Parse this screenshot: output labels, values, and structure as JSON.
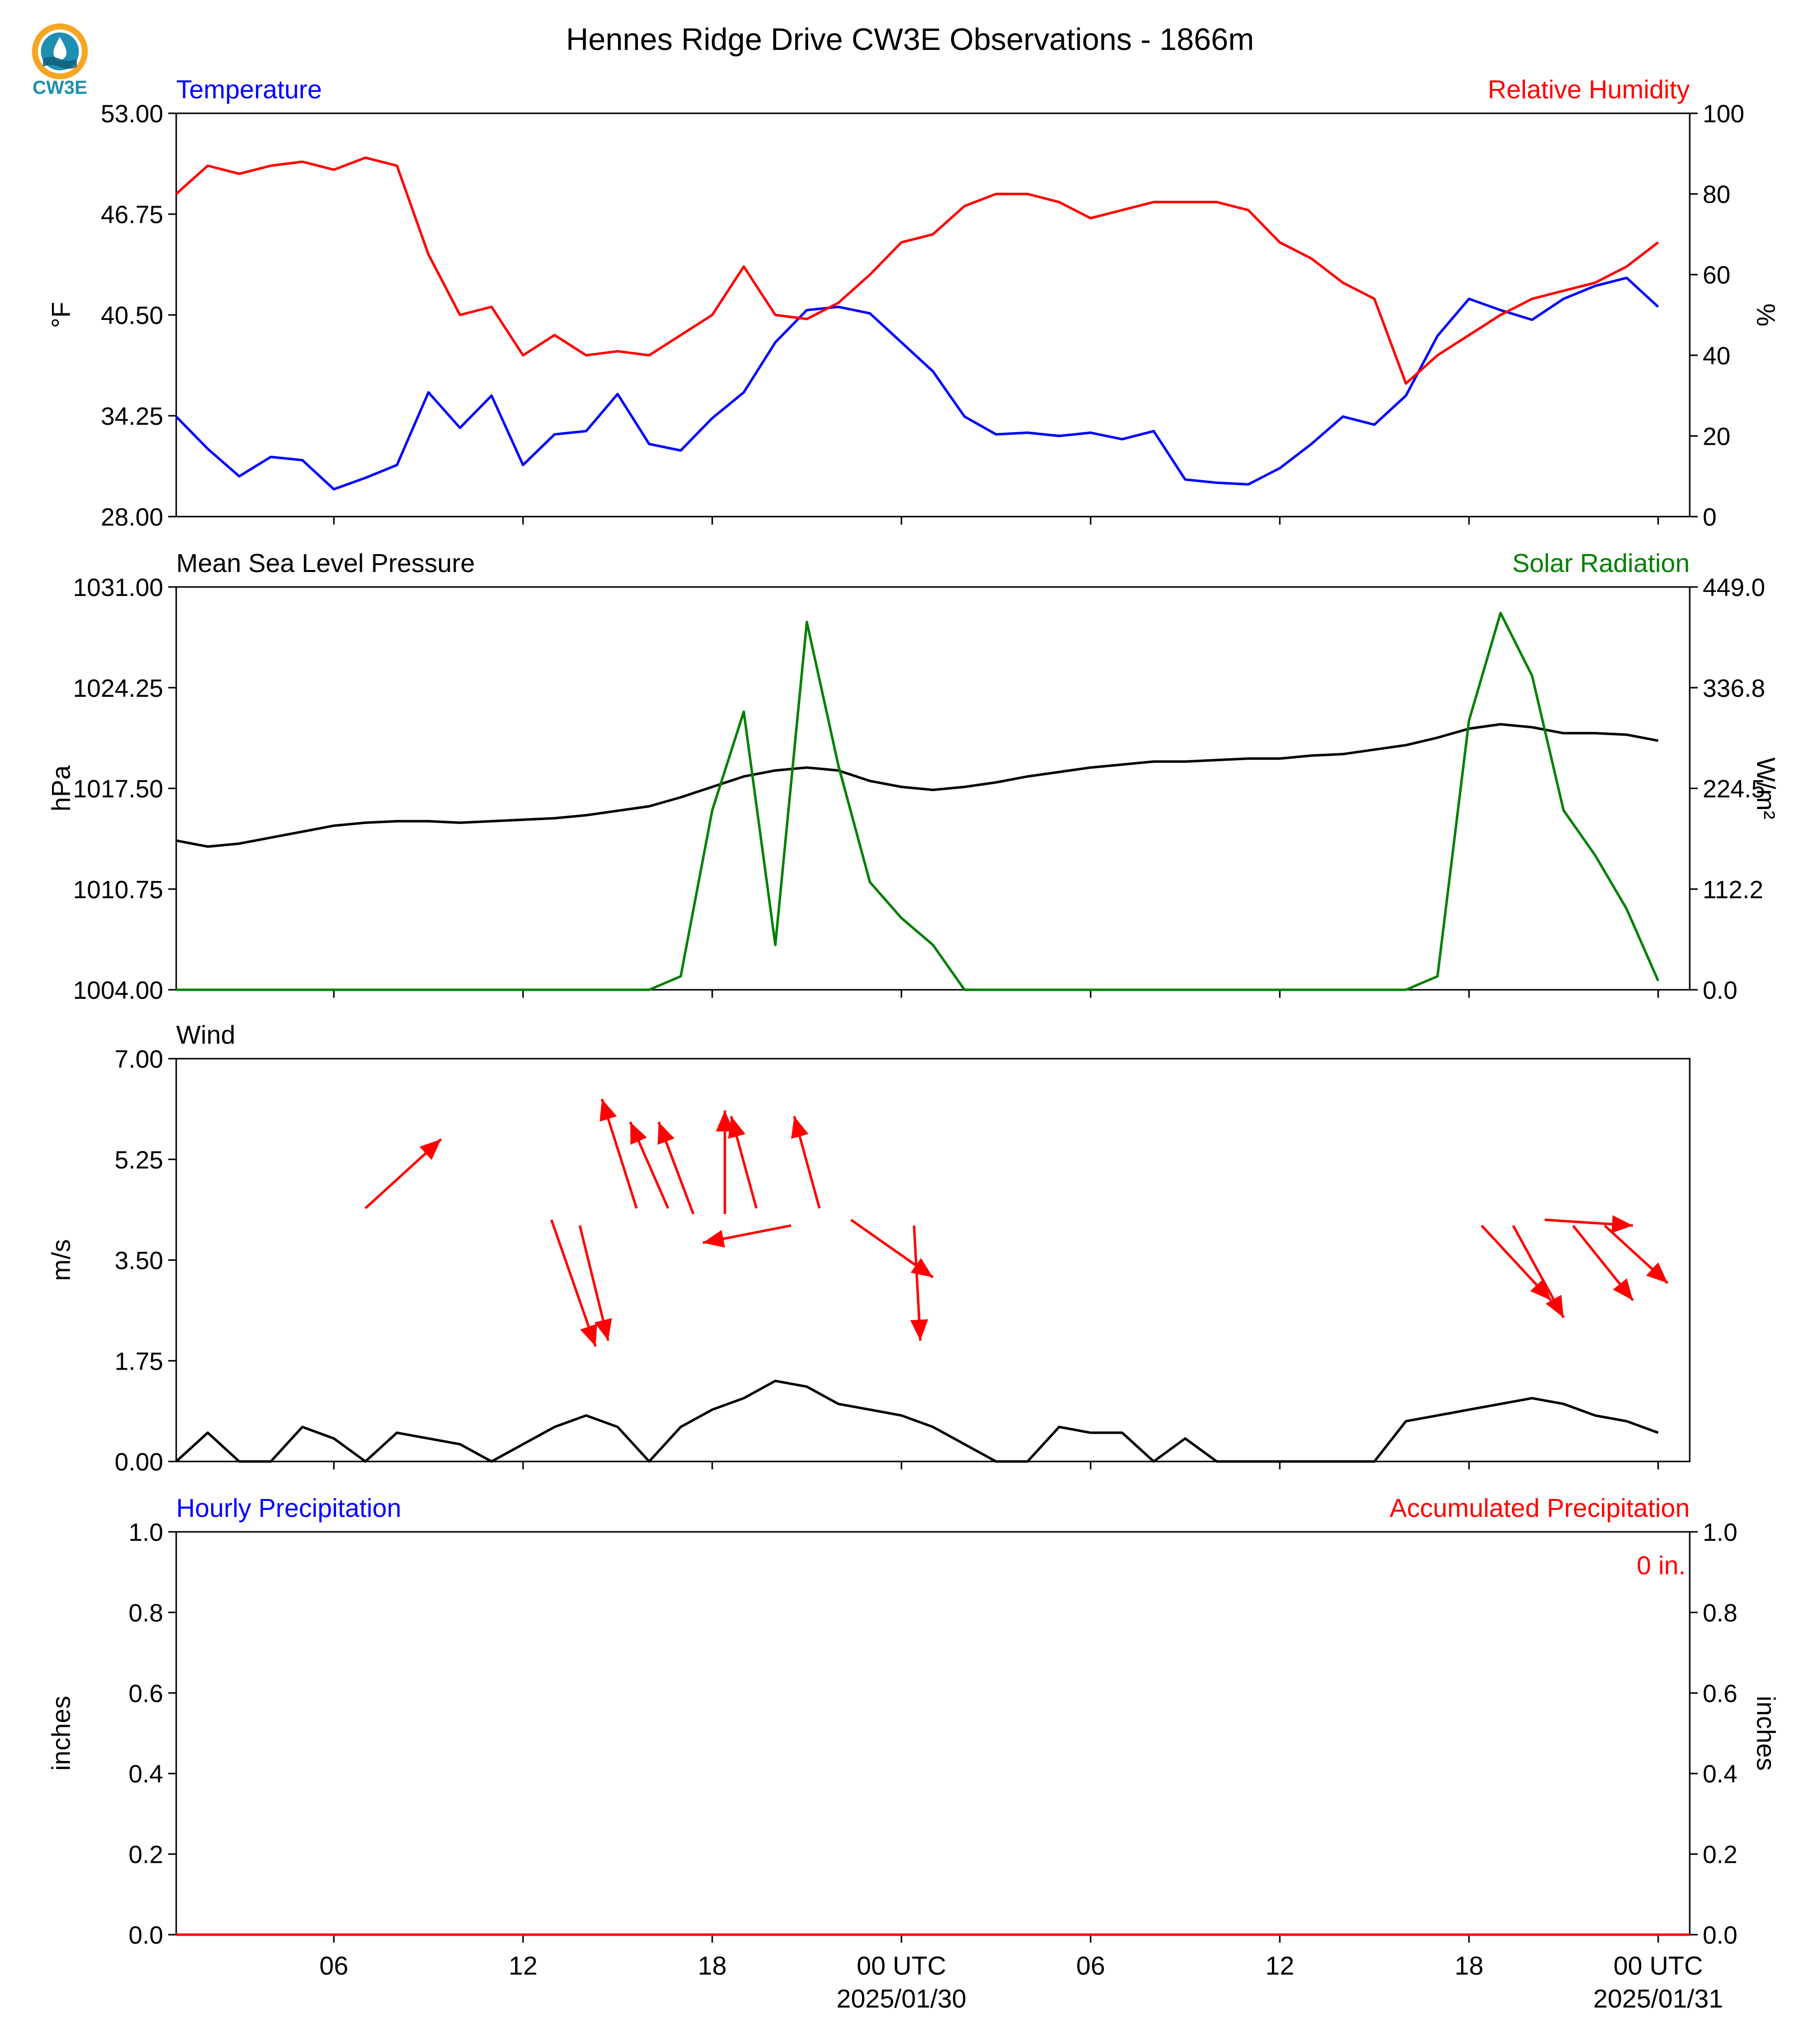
{
  "title": "Hennes Ridge Drive CW3E Observations - 1866m",
  "logo": {
    "text": "CW3E",
    "icon": "cw3e-logo-icon",
    "colors": {
      "ring": "#f5a623",
      "teal": "#1e8fb0",
      "dark": "#0f5f7a"
    }
  },
  "colors": {
    "blue": "#0000ff",
    "red": "#ff0000",
    "green": "#008000",
    "black": "#000000"
  },
  "chart_data": [
    {
      "type": "line",
      "left_label": "Temperature",
      "right_label": "Relative Humidity",
      "ylabel": "°F",
      "ylabel_right": "%",
      "ylim": [
        28,
        53
      ],
      "ylim_right": [
        0,
        100
      ],
      "yticks": [
        "53.00",
        "46.75",
        "40.50",
        "34.25",
        "28.00"
      ],
      "yticks_right": [
        "100",
        "80",
        "60",
        "40",
        "20",
        "0"
      ],
      "x_hours": [
        0,
        1,
        2,
        3,
        4,
        5,
        6,
        7,
        8,
        9,
        10,
        11,
        12,
        13,
        14,
        15,
        16,
        17,
        18,
        19,
        20,
        21,
        22,
        23,
        24,
        25,
        26,
        27,
        28,
        29,
        30,
        31,
        32,
        33,
        34,
        35,
        36,
        37,
        38,
        39,
        40,
        41,
        42,
        43,
        44,
        45,
        46,
        47
      ],
      "series": [
        {
          "name": "Temperature",
          "axis": "left",
          "color": "#0000ff",
          "values": [
            34.2,
            32.2,
            30.5,
            31.7,
            31.5,
            29.7,
            30.4,
            31.2,
            35.7,
            33.5,
            35.5,
            31.2,
            33.1,
            33.3,
            35.6,
            32.5,
            32.1,
            34.1,
            35.7,
            38.8,
            40.8,
            41.0,
            40.6,
            38.8,
            37.0,
            34.2,
            33.1,
            33.2,
            33.0,
            33.2,
            32.8,
            33.3,
            30.3,
            30.1,
            30.0,
            31.0,
            32.5,
            34.2,
            33.7,
            35.5,
            39.2,
            41.5,
            40.8,
            40.2,
            41.5,
            42.3,
            42.8,
            41.0
          ]
        },
        {
          "name": "Relative Humidity",
          "axis": "right",
          "color": "#ff0000",
          "values": [
            80,
            87,
            85,
            87,
            88,
            86,
            89,
            87,
            65,
            50,
            52,
            40,
            45,
            40,
            41,
            40,
            45,
            50,
            62,
            50,
            49,
            53,
            60,
            68,
            70,
            77,
            80,
            80,
            78,
            74,
            76,
            78,
            78,
            78,
            76,
            68,
            64,
            58,
            54,
            33,
            40,
            45,
            50,
            54,
            56,
            58,
            62,
            68
          ]
        },
        {
          "name": "Relative Humidity (points)",
          "axis": "right",
          "color": "#ff0000",
          "values": []
        }
      ]
    },
    {
      "type": "line",
      "left_label": "Mean Sea Level Pressure",
      "right_label": "Solar Radiation",
      "ylabel": "hPa",
      "ylabel_right": "W/m²",
      "ylim": [
        1004,
        1031
      ],
      "ylim_right": [
        0,
        449
      ],
      "yticks": [
        "1031.00",
        "1024.25",
        "1017.50",
        "1010.75",
        "1004.00"
      ],
      "yticks_right": [
        "449.0",
        "336.8",
        "224.5",
        "112.2",
        "0.0"
      ],
      "x_hours": [
        0,
        1,
        2,
        3,
        4,
        5,
        6,
        7,
        8,
        9,
        10,
        11,
        12,
        13,
        14,
        15,
        16,
        17,
        18,
        19,
        20,
        21,
        22,
        23,
        24,
        25,
        26,
        27,
        28,
        29,
        30,
        31,
        32,
        33,
        34,
        35,
        36,
        37,
        38,
        39,
        40,
        41,
        42,
        43,
        44,
        45,
        46,
        47
      ],
      "series": [
        {
          "name": "Mean Sea Level Pressure",
          "axis": "left",
          "color": "#000000",
          "values": [
            1014.0,
            1013.6,
            1013.8,
            1014.2,
            1014.6,
            1015.0,
            1015.2,
            1015.3,
            1015.3,
            1015.2,
            1015.3,
            1015.4,
            1015.5,
            1015.7,
            1016.0,
            1016.3,
            1016.9,
            1017.6,
            1018.3,
            1018.7,
            1018.9,
            1018.7,
            1018.0,
            1017.6,
            1017.4,
            1017.6,
            1017.9,
            1018.3,
            1018.6,
            1018.9,
            1019.1,
            1019.3,
            1019.3,
            1019.4,
            1019.5,
            1019.5,
            1019.7,
            1019.8,
            1020.1,
            1020.4,
            1020.9,
            1021.5,
            1021.8,
            1021.6,
            1021.2,
            1021.2,
            1021.1,
            1020.7
          ]
        },
        {
          "name": "Solar Radiation",
          "axis": "right",
          "color": "#008000",
          "values": [
            0,
            0,
            0,
            0,
            0,
            0,
            0,
            0,
            0,
            0,
            0,
            0,
            0,
            0,
            0,
            0,
            15,
            200,
            310,
            50,
            410,
            250,
            120,
            80,
            50,
            0,
            0,
            0,
            0,
            0,
            0,
            0,
            0,
            0,
            0,
            0,
            0,
            0,
            0,
            0,
            15,
            300,
            420,
            350,
            200,
            150,
            90,
            10
          ]
        }
      ]
    },
    {
      "type": "line",
      "left_label": "Wind",
      "ylabel": "m/s",
      "ylim": [
        0,
        7
      ],
      "yticks": [
        "7.00",
        "5.25",
        "3.50",
        "1.75",
        "0.00"
      ],
      "x_hours": [
        0,
        1,
        2,
        3,
        4,
        5,
        6,
        7,
        8,
        9,
        10,
        11,
        12,
        13,
        14,
        15,
        16,
        17,
        18,
        19,
        20,
        21,
        22,
        23,
        24,
        25,
        26,
        27,
        28,
        29,
        30,
        31,
        32,
        33,
        34,
        35,
        36,
        37,
        38,
        39,
        40,
        41,
        42,
        43,
        44,
        45,
        46,
        47
      ],
      "series": [
        {
          "name": "Wind speed",
          "axis": "left",
          "color": "#000000",
          "values": [
            0,
            0.5,
            0,
            0,
            0.6,
            0.4,
            0,
            0.5,
            0.4,
            0.3,
            0,
            0.3,
            0.6,
            0.8,
            0.6,
            0,
            0.6,
            0.9,
            1.1,
            1.4,
            1.3,
            1.0,
            0.9,
            0.8,
            0.6,
            0.3,
            0,
            0,
            0.6,
            0.5,
            0.5,
            0,
            0.4,
            0,
            0,
            0,
            0,
            0,
            0,
            0.7,
            0.8,
            0.9,
            1.0,
            1.1,
            1.0,
            0.8,
            0.7,
            0.5
          ]
        }
      ],
      "barbs": [
        {
          "x": 6.0,
          "y": 4.4,
          "u": 2.4,
          "v": 1.2
        },
        {
          "x": 11.9,
          "y": 4.2,
          "u": 1.4,
          "v": -2.2
        },
        {
          "x": 12.8,
          "y": 4.1,
          "u": 0.9,
          "v": -2.0
        },
        {
          "x": 14.6,
          "y": 4.4,
          "u": -1.1,
          "v": 1.9
        },
        {
          "x": 15.6,
          "y": 4.4,
          "u": -1.2,
          "v": 1.5
        },
        {
          "x": 16.4,
          "y": 4.3,
          "u": -1.1,
          "v": 1.6
        },
        {
          "x": 17.4,
          "y": 4.3,
          "u": 0.0,
          "v": 1.8
        },
        {
          "x": 18.4,
          "y": 4.4,
          "u": -0.8,
          "v": 1.6
        },
        {
          "x": 19.5,
          "y": 4.1,
          "u": -2.8,
          "v": -0.3
        },
        {
          "x": 20.4,
          "y": 4.4,
          "u": -0.8,
          "v": 1.6
        },
        {
          "x": 21.4,
          "y": 4.2,
          "u": 2.6,
          "v": -1.0
        },
        {
          "x": 23.4,
          "y": 4.1,
          "u": 0.2,
          "v": -2.0
        },
        {
          "x": 41.4,
          "y": 4.1,
          "u": 2.2,
          "v": -1.3
        },
        {
          "x": 42.4,
          "y": 4.1,
          "u": 1.6,
          "v": -1.6
        },
        {
          "x": 43.4,
          "y": 4.2,
          "u": 2.8,
          "v": -0.1
        },
        {
          "x": 44.3,
          "y": 4.1,
          "u": 1.9,
          "v": -1.3
        },
        {
          "x": 45.3,
          "y": 4.1,
          "u": 2.0,
          "v": -1.0
        }
      ]
    },
    {
      "type": "line",
      "left_label": "Hourly Precipitation",
      "right_label": "Accumulated Precipitation",
      "ylabel": "inches",
      "ylabel_right": "inches",
      "ylim": [
        0,
        1
      ],
      "ylim_right": [
        0,
        1
      ],
      "yticks": [
        "1.0",
        "0.8",
        "0.6",
        "0.4",
        "0.2",
        "0.0"
      ],
      "yticks_right": [
        "1.0",
        "0.8",
        "0.6",
        "0.4",
        "0.2",
        "0.0"
      ],
      "annotation": "0 in.",
      "series": [
        {
          "name": "Hourly Precipitation",
          "axis": "left",
          "color": "#0000ff",
          "values": [
            0,
            0
          ]
        },
        {
          "name": "Accumulated Precipitation",
          "axis": "right",
          "color": "#ff0000",
          "values": [
            0,
            0
          ]
        }
      ]
    }
  ],
  "x_axis": {
    "xlim_hours": [
      0,
      48
    ],
    "tick_labels": [
      "06",
      "12",
      "18",
      "00 UTC",
      "06",
      "12",
      "18",
      "00 UTC"
    ],
    "tick_hours": [
      5,
      11,
      17,
      23,
      29,
      35,
      41,
      47
    ],
    "date_labels": [
      "2025/01/30",
      "2025/01/31"
    ],
    "date_hours": [
      23,
      47
    ]
  }
}
